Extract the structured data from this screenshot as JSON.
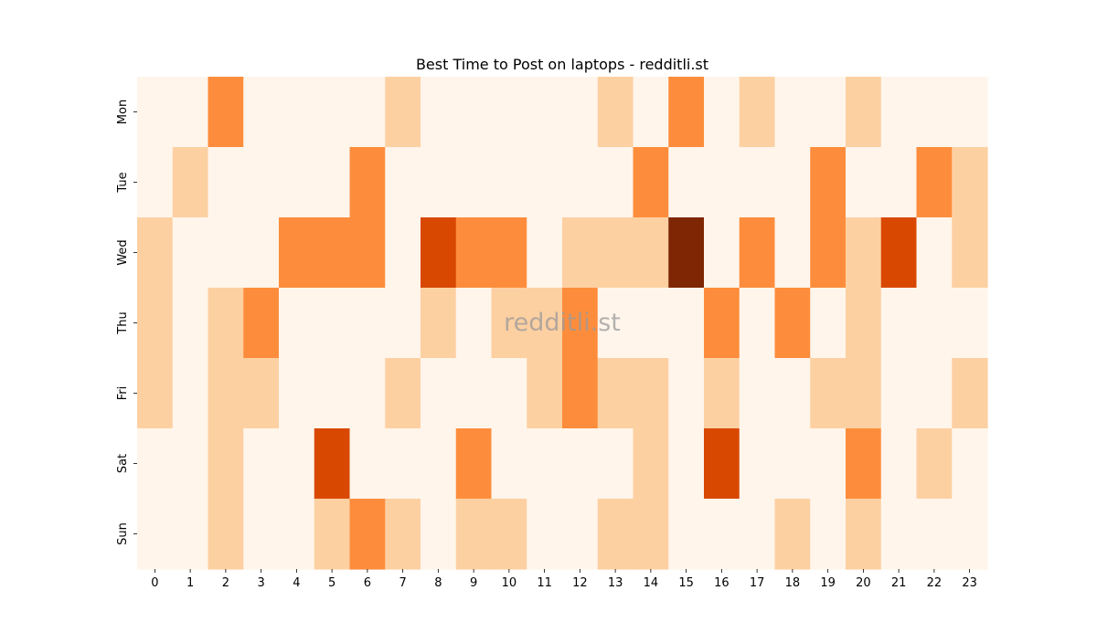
{
  "chart_data": {
    "type": "heatmap",
    "title": "Best Time to Post on laptops - redditli.st",
    "xlabel": "",
    "ylabel": "",
    "x_categories": [
      "0",
      "1",
      "2",
      "3",
      "4",
      "5",
      "6",
      "7",
      "8",
      "9",
      "10",
      "11",
      "12",
      "13",
      "14",
      "15",
      "16",
      "17",
      "18",
      "19",
      "20",
      "21",
      "22",
      "23"
    ],
    "y_categories": [
      "Mon",
      "Tue",
      "Wed",
      "Thu",
      "Fri",
      "Sat",
      "Sun"
    ],
    "values": [
      [
        0,
        0,
        2,
        0,
        0,
        0,
        0,
        1,
        0,
        0,
        0,
        0,
        0,
        1,
        0,
        2,
        0,
        1,
        0,
        0,
        1,
        0,
        0,
        0
      ],
      [
        0,
        1,
        0,
        0,
        0,
        0,
        2,
        0,
        0,
        0,
        0,
        0,
        0,
        0,
        2,
        0,
        0,
        0,
        0,
        2,
        0,
        0,
        2,
        1
      ],
      [
        1,
        0,
        0,
        0,
        2,
        2,
        2,
        0,
        3,
        2,
        2,
        0,
        1,
        1,
        1,
        4,
        0,
        2,
        0,
        2,
        1,
        3,
        0,
        1
      ],
      [
        1,
        0,
        1,
        2,
        0,
        0,
        0,
        0,
        1,
        0,
        1,
        1,
        2,
        0,
        0,
        0,
        2,
        0,
        2,
        0,
        1,
        0,
        0,
        0
      ],
      [
        1,
        0,
        1,
        1,
        0,
        0,
        0,
        1,
        0,
        0,
        0,
        1,
        2,
        1,
        1,
        0,
        1,
        0,
        0,
        1,
        1,
        0,
        0,
        1
      ],
      [
        0,
        0,
        1,
        0,
        0,
        3,
        0,
        0,
        0,
        2,
        0,
        0,
        0,
        0,
        1,
        0,
        3,
        0,
        0,
        0,
        2,
        0,
        1,
        0
      ],
      [
        0,
        0,
        1,
        0,
        0,
        1,
        2,
        1,
        0,
        1,
        1,
        0,
        0,
        1,
        1,
        0,
        0,
        0,
        1,
        0,
        1,
        0,
        0,
        0
      ]
    ],
    "colormap": [
      "#fff5eb",
      "#fdd0a2",
      "#fd8d3c",
      "#d94801",
      "#7f2704"
    ],
    "legend": "none",
    "grid": false,
    "watermark": "redditli.st"
  }
}
